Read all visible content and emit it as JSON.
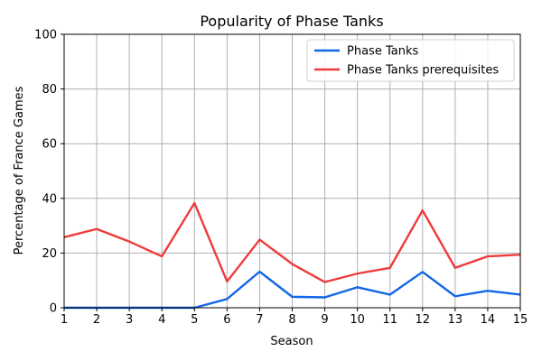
{
  "chart_data": {
    "type": "line",
    "title": "Popularity of Phase Tanks",
    "xlabel": "Season",
    "ylabel": "Percentage of France Games",
    "xlim": [
      1,
      15
    ],
    "ylim": [
      0,
      100
    ],
    "x": [
      1,
      2,
      3,
      4,
      5,
      6,
      7,
      8,
      9,
      10,
      11,
      12,
      13,
      14,
      15
    ],
    "x_ticks": [
      "1",
      "2",
      "3",
      "4",
      "5",
      "6",
      "7",
      "8",
      "9",
      "10",
      "11",
      "12",
      "13",
      "14",
      "15"
    ],
    "y_ticks": [
      "0",
      "20",
      "40",
      "60",
      "80",
      "100"
    ],
    "grid": true,
    "legend_position": "top-right",
    "series": [
      {
        "name": "Phase Tanks",
        "color": "#1266e8",
        "values": [
          0,
          0,
          0,
          0,
          0,
          3.2,
          13.2,
          4.0,
          3.8,
          7.5,
          4.8,
          13.1,
          4.2,
          6.2,
          4.8
        ]
      },
      {
        "name": "Phase Tanks prerequisites",
        "color": "#ee3b3b",
        "values": [
          25.8,
          28.8,
          24.2,
          18.8,
          38.3,
          9.6,
          24.9,
          16.0,
          9.4,
          12.5,
          14.6,
          35.6,
          14.6,
          18.8,
          19.4
        ]
      }
    ]
  }
}
